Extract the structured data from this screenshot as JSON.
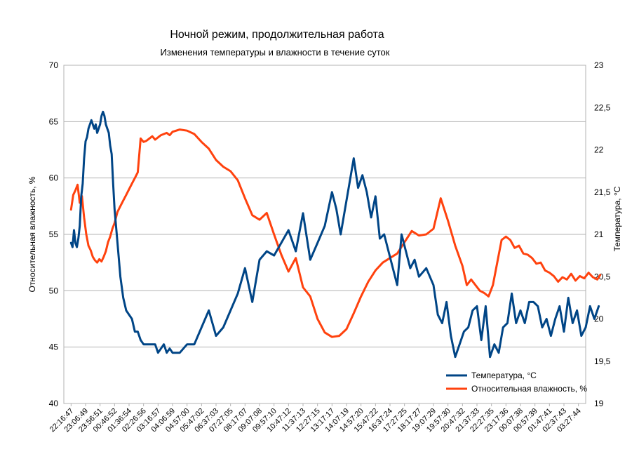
{
  "chart_data": {
    "type": "line",
    "title": "Ночной режим, продолжительная работа",
    "subtitle": "Изменения температуры и влажности в течение суток",
    "ylabel_left": "Относительная влажность, %",
    "ylabel_right": "Температура, °C",
    "ylim_left": [
      40,
      70
    ],
    "yticks_left": [
      "40",
      "45",
      "50",
      "55",
      "60",
      "65",
      "70"
    ],
    "ylim_right": [
      19,
      23
    ],
    "yticks_right": [
      "19",
      "19,5",
      "20",
      "20,5",
      "21",
      "21,5",
      "22",
      "22,5",
      "23"
    ],
    "grid": true,
    "legend": "bottom-right",
    "x_ticks": [
      "22:16:47",
      "23:06:49",
      "23:56:51",
      "00:46:52",
      "01:36:54",
      "02:26:56",
      "03:16:57",
      "04:06:59",
      "04:57:00",
      "05:47:02",
      "06:37:03",
      "07:27:05",
      "08:17:07",
      "09:07:08",
      "09:57:10",
      "10:47:12",
      "11:37:13",
      "12:27:15",
      "13:17:17",
      "14:07:19",
      "14:57:20",
      "15:47:22",
      "16:37:24",
      "17:27:25",
      "18:17:27",
      "19:07:29",
      "19:57:30",
      "20:47:32",
      "21:37:33",
      "22:27:35",
      "23:17:36",
      "00:07:38",
      "00:57:39",
      "01:47:41",
      "02:37:43",
      "03:27:44"
    ],
    "series": [
      {
        "name": "Температура, °C",
        "axis": "right",
        "color": "#004586",
        "x": [
          0,
          0.1,
          0.2,
          0.3,
          0.4,
          0.5,
          0.6,
          0.7,
          0.8,
          0.9,
          1.0,
          1.1,
          1.2,
          1.3,
          1.4,
          1.5,
          1.6,
          1.7,
          1.8,
          1.9,
          2.0,
          2.1,
          2.2,
          2.3,
          2.4,
          2.5,
          2.6,
          2.7,
          2.8,
          2.9,
          3.0,
          3.2,
          3.4,
          3.6,
          3.8,
          4.0,
          4.2,
          4.4,
          4.6,
          4.8,
          5.0,
          5.2,
          5.4,
          5.6,
          5.8,
          6.0,
          6.2,
          6.4,
          6.6,
          6.8,
          7.0,
          7.5,
          8.0,
          8.5,
          9.0,
          9.5,
          10.0,
          10.5,
          11.0,
          11.5,
          12.0,
          12.5,
          13.0,
          13.5,
          14.0,
          14.5,
          15.0,
          15.5,
          16.0,
          16.5,
          17.0,
          17.5,
          18.0,
          18.3,
          18.6,
          18.9,
          19.2,
          19.5,
          19.8,
          20.1,
          20.4,
          20.7,
          21.0,
          21.3,
          21.6,
          21.9,
          22.2,
          22.5,
          22.8,
          23.1,
          23.4,
          23.7,
          24.0,
          24.5,
          25.0,
          25.3,
          25.6,
          25.9,
          26.2,
          26.5,
          26.8,
          27.1,
          27.4,
          27.7,
          28.0,
          28.3,
          28.6,
          28.9,
          29.2,
          29.5,
          29.8,
          30.1,
          30.4,
          30.7,
          31.0,
          31.3,
          31.6,
          31.9,
          32.2,
          32.5,
          32.8,
          33.1,
          33.4,
          33.7,
          34.0,
          34.3,
          34.6,
          34.9,
          35.2,
          35.5,
          35.8,
          36.1,
          36.4
        ],
        "values": [
          20.9,
          20.85,
          21.05,
          20.9,
          20.85,
          20.95,
          21.1,
          21.45,
          21.6,
          21.9,
          22.1,
          22.15,
          22.25,
          22.3,
          22.35,
          22.3,
          22.25,
          22.3,
          22.2,
          22.25,
          22.3,
          22.4,
          22.45,
          22.4,
          22.3,
          22.25,
          22.2,
          22.05,
          21.95,
          21.6,
          21.3,
          20.9,
          20.5,
          20.25,
          20.1,
          20.05,
          20.0,
          19.85,
          19.85,
          19.75,
          19.7,
          19.7,
          19.7,
          19.7,
          19.7,
          19.6,
          19.65,
          19.7,
          19.6,
          19.65,
          19.6,
          19.6,
          19.7,
          19.7,
          19.9,
          20.1,
          19.8,
          19.9,
          20.1,
          20.3,
          20.6,
          20.2,
          20.7,
          20.8,
          20.75,
          20.9,
          21.05,
          20.8,
          21.25,
          20.7,
          20.9,
          21.1,
          21.5,
          21.3,
          21.0,
          21.3,
          21.6,
          21.9,
          21.55,
          21.7,
          21.5,
          21.2,
          21.45,
          20.95,
          21.0,
          20.8,
          20.6,
          20.4,
          21.0,
          20.8,
          20.6,
          20.7,
          20.5,
          20.6,
          20.4,
          20.05,
          19.95,
          20.2,
          19.8,
          19.55,
          19.7,
          19.85,
          19.9,
          20.1,
          20.15,
          19.75,
          20.15,
          19.55,
          19.7,
          19.6,
          19.9,
          19.95,
          20.3,
          19.95,
          20.1,
          19.95,
          20.2,
          20.2,
          20.15,
          19.9,
          20.0,
          19.8,
          20.0,
          20.15,
          19.85,
          20.25,
          19.95,
          20.1,
          19.8,
          19.9,
          20.15,
          20.0,
          20.15
        ]
      },
      {
        "name": "Относительная влажность, %",
        "axis": "left",
        "color": "#ff420e",
        "x": [
          0,
          0.15,
          0.3,
          0.45,
          0.6,
          0.75,
          0.9,
          1.05,
          1.2,
          1.35,
          1.5,
          1.65,
          1.8,
          1.95,
          2.1,
          2.25,
          2.4,
          2.55,
          2.7,
          2.85,
          3.0,
          3.2,
          3.4,
          3.6,
          3.8,
          4.0,
          4.2,
          4.4,
          4.6,
          4.8,
          5.0,
          5.2,
          5.4,
          5.6,
          5.8,
          6.0,
          6.2,
          6.4,
          6.6,
          6.8,
          7.0,
          7.5,
          8.0,
          8.5,
          9.0,
          9.5,
          10.0,
          10.5,
          11.0,
          11.5,
          12.0,
          12.5,
          13.0,
          13.5,
          14.0,
          14.5,
          15.0,
          15.5,
          16.0,
          16.5,
          17.0,
          17.5,
          18.0,
          18.5,
          19.0,
          19.5,
          20.0,
          20.5,
          21.0,
          21.5,
          22.0,
          22.5,
          23.0,
          23.5,
          24.0,
          24.5,
          25.0,
          25.5,
          26.0,
          26.5,
          27.0,
          27.3,
          27.6,
          27.9,
          28.2,
          28.5,
          28.8,
          29.1,
          29.4,
          29.7,
          30.0,
          30.3,
          30.6,
          30.9,
          31.2,
          31.5,
          31.8,
          32.1,
          32.4,
          32.7,
          33.0,
          33.3,
          33.6,
          33.9,
          34.2,
          34.5,
          34.8,
          35.1,
          35.4,
          35.7,
          36.0,
          36.3,
          36.5
        ],
        "values": [
          57.2,
          58.5,
          58.9,
          59.4,
          57.8,
          58.4,
          56.5,
          55.0,
          54.0,
          53.6,
          53.0,
          52.7,
          52.5,
          52.8,
          52.6,
          53.0,
          53.5,
          54.3,
          54.8,
          55.5,
          56.0,
          57.0,
          57.5,
          58.0,
          58.5,
          59.0,
          59.5,
          60.0,
          60.5,
          63.5,
          63.2,
          63.3,
          63.5,
          63.7,
          63.4,
          63.6,
          63.8,
          63.9,
          64.0,
          63.8,
          64.1,
          64.3,
          64.2,
          63.9,
          63.2,
          62.6,
          61.6,
          61.0,
          60.6,
          59.8,
          58.2,
          56.7,
          56.3,
          56.9,
          55.0,
          53.2,
          51.7,
          52.9,
          50.3,
          49.5,
          47.5,
          46.3,
          45.9,
          46.0,
          46.6,
          48.0,
          49.5,
          50.8,
          51.8,
          52.5,
          52.9,
          53.3,
          54.3,
          55.3,
          54.9,
          55.0,
          55.5,
          58.2,
          56.2,
          54.0,
          52.2,
          50.5,
          51.0,
          50.5,
          50.0,
          49.8,
          49.5,
          50.5,
          52.5,
          54.5,
          54.8,
          54.5,
          53.8,
          54.0,
          53.3,
          53.2,
          52.9,
          52.4,
          52.5,
          51.8,
          51.6,
          51.3,
          50.8,
          51.2,
          51.0,
          51.5,
          50.9,
          51.3,
          51.1,
          51.6,
          51.2,
          51.0,
          51.4
        ]
      }
    ]
  }
}
